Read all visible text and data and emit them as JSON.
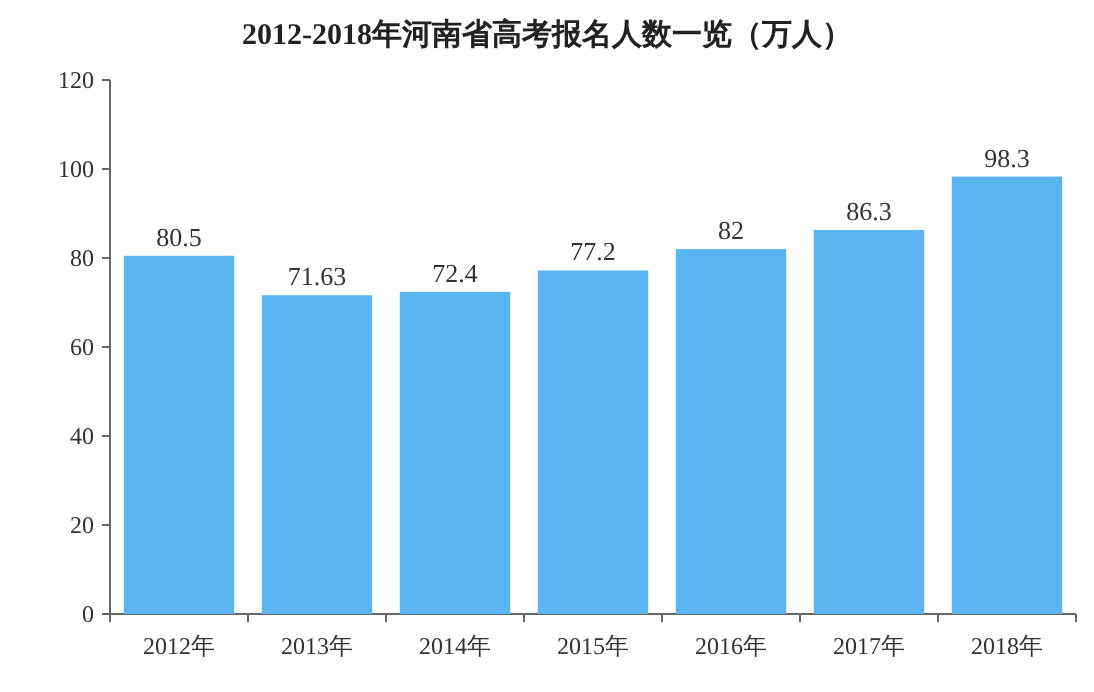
{
  "chart_data": {
    "type": "bar",
    "title": "2012-2018年河南省高考报名人数一览（万人）",
    "categories": [
      "2012年",
      "2013年",
      "2014年",
      "2015年",
      "2016年",
      "2017年",
      "2018年"
    ],
    "values": [
      80.5,
      71.63,
      72.4,
      77.2,
      82,
      86.3,
      98.3
    ],
    "color": "#5ab4f0",
    "ylim": [
      0,
      120
    ],
    "yticks": [
      0,
      20,
      40,
      60,
      80,
      100,
      120
    ],
    "data_labels": true,
    "grid": false
  }
}
